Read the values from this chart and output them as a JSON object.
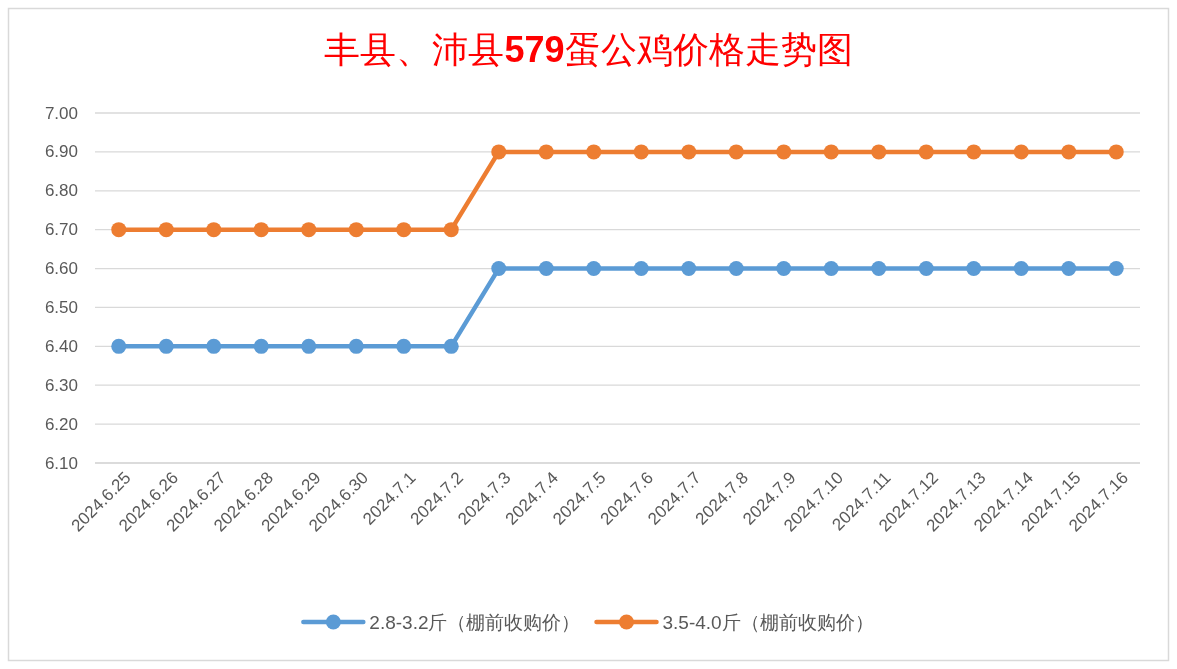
{
  "chart_data": {
    "type": "line",
    "title": "丰县、沛县579蛋公鸡价格走势图",
    "categories": [
      "2024.6.25",
      "2024.6.26",
      "2024.6.27",
      "2024.6.28",
      "2024.6.29",
      "2024.6.30",
      "2024.7.1",
      "2024.7.2",
      "2024.7.3",
      "2024.7.4",
      "2024.7.5",
      "2024.7.6",
      "2024.7.7",
      "2024.7.8",
      "2024.7.9",
      "2024.7.10",
      "2024.7.11",
      "2024.7.12",
      "2024.7.13",
      "2024.7.14",
      "2024.7.15",
      "2024.7.16"
    ],
    "series": [
      {
        "name": "2.8-3.2斤（棚前收购价）",
        "color": "#5b9bd5",
        "values": [
          6.4,
          6.4,
          6.4,
          6.4,
          6.4,
          6.4,
          6.4,
          6.4,
          6.6,
          6.6,
          6.6,
          6.6,
          6.6,
          6.6,
          6.6,
          6.6,
          6.6,
          6.6,
          6.6,
          6.6,
          6.6,
          6.6
        ]
      },
      {
        "name": "3.5-4.0斤（棚前收购价）",
        "color": "#ed7d31",
        "values": [
          6.7,
          6.7,
          6.7,
          6.7,
          6.7,
          6.7,
          6.7,
          6.7,
          6.9,
          6.9,
          6.9,
          6.9,
          6.9,
          6.9,
          6.9,
          6.9,
          6.9,
          6.9,
          6.9,
          6.9,
          6.9,
          6.9
        ]
      }
    ],
    "ylim": [
      6.1,
      7.0
    ],
    "yticks": [
      {
        "value": 6.1,
        "label": "6.10"
      },
      {
        "value": 6.2,
        "label": "6.20"
      },
      {
        "value": 6.3,
        "label": "6.30"
      },
      {
        "value": 6.4,
        "label": "6.40"
      },
      {
        "value": 6.5,
        "label": "6.50"
      },
      {
        "value": 6.6,
        "label": "6.60"
      },
      {
        "value": 6.7,
        "label": "6.70"
      },
      {
        "value": 6.8,
        "label": "6.80"
      },
      {
        "value": 6.9,
        "label": "6.90"
      },
      {
        "value": 7.0,
        "label": "7.00"
      }
    ],
    "grid": "y",
    "legend": "bottom",
    "marker": "circle",
    "line_style": "solid"
  }
}
